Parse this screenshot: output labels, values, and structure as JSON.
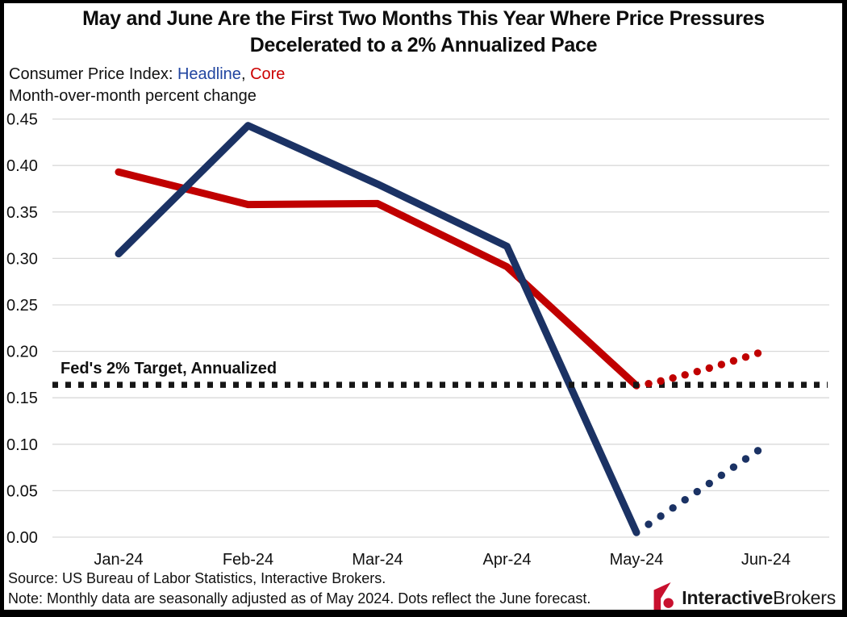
{
  "chart_data": {
    "type": "line",
    "title_line1": "May and June Are the First Two Months This Year Where Price Pressures",
    "title_line2": "Decelerated to a 2% Annualized Pace",
    "subtitle_prefix": "Consumer Price Index: ",
    "subtitle_series1": "Headline",
    "subtitle_separator": ", ",
    "subtitle_series2": "Core",
    "subtitle_line2": "Month-over-month percent change",
    "categories": [
      "Jan-24",
      "Feb-24",
      "Mar-24",
      "Apr-24",
      "May-24",
      "Jun-24"
    ],
    "y_ticks": [
      "0.00",
      "0.05",
      "0.10",
      "0.15",
      "0.20",
      "0.25",
      "0.30",
      "0.35",
      "0.40",
      "0.45"
    ],
    "ylim": [
      0,
      0.45
    ],
    "grid": true,
    "legend_position": "in-subtitle",
    "series": [
      {
        "name": "Headline",
        "color": "#1b3264",
        "values": [
          0.305,
          0.443,
          0.38,
          0.313,
          0.005
        ],
        "forecast": 0.093,
        "forecast_ease": 1.0
      },
      {
        "name": "Core",
        "color": "#c00000",
        "values": [
          0.393,
          0.358,
          0.359,
          0.291,
          0.163
        ],
        "forecast": 0.198,
        "forecast_ease": 1.2
      }
    ],
    "target_line": {
      "label": "Fed's 2% Target, Annualized",
      "value": 0.164,
      "color": "#161616"
    },
    "source": "Source: US Bureau of Labor Statistics, Interactive Brokers.",
    "note": "Note: Monthly data are seasonally adjusted as of May 2024. Dots reflect the June forecast."
  },
  "branding": {
    "logo_bold": "Interactive",
    "logo_regular": "Brokers",
    "logo_icon": "interactive-brokers-mark",
    "logo_red": "#c8102e",
    "logo_text_color": "#1a1a1a"
  },
  "colors": {
    "headline_text_blue": "#2145a0",
    "core_text_red": "#cc0000",
    "gridline": "#d9d9d9",
    "axis_text": "#111111"
  }
}
